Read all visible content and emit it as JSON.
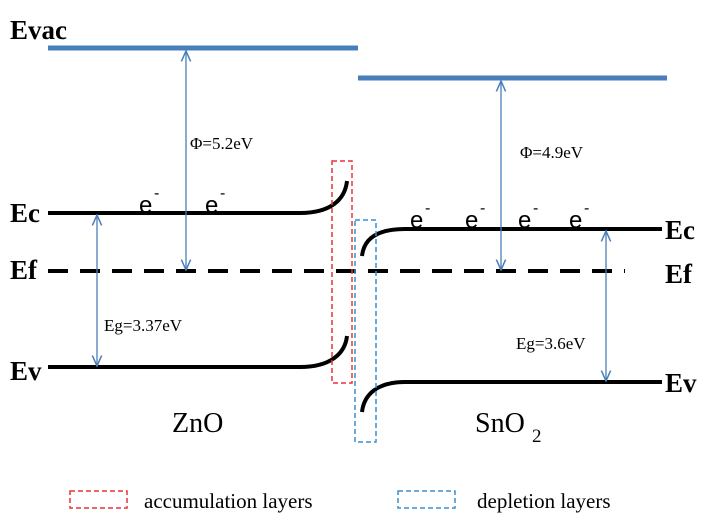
{
  "colors": {
    "vacuum_level": "#4a7ebb",
    "band": "#000000",
    "arrow": "#4a7ebb",
    "accumulation_box": "#e8323c",
    "depletion_box": "#3a8fd0"
  },
  "labels": {
    "evac": "Evac",
    "ec_left": "Ec",
    "ef_left": "Ef",
    "ev_left": "Ev",
    "ec_right": "Ec",
    "ef_right": "Ef",
    "ev_right": "Ev",
    "phi_left": "Φ=5.2eV",
    "phi_right": "Φ=4.9eV",
    "eg_left": "Eg=3.37eV",
    "eg_right": "Eg=3.6eV",
    "material_left": "ZnO",
    "material_right_base": "SnO",
    "material_right_sub": "2",
    "electron": "e",
    "electron_charge": "-"
  },
  "legend": {
    "accumulation": "accumulation layers",
    "depletion": "depletion layers"
  }
}
